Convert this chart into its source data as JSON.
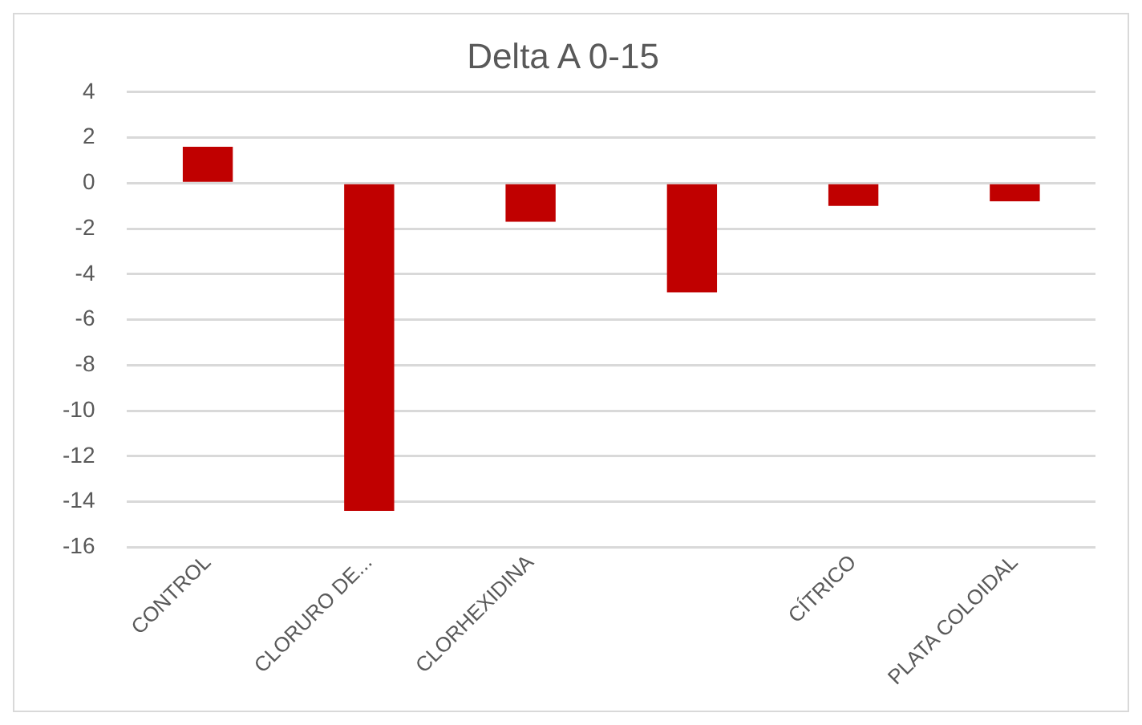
{
  "chart_data": {
    "type": "bar",
    "title": "Delta A 0-15",
    "categories": [
      "CONTROL",
      "CLORURO DE...",
      "CLORHEXIDINA",
      null,
      "CÍTRICO",
      "PLATA COLOIDAL"
    ],
    "values": [
      1.6,
      -14.4,
      -1.7,
      -4.8,
      -1.0,
      -0.8
    ],
    "color": "#c00000",
    "ylim": [
      -16,
      4
    ],
    "yticks": [
      -16,
      -14,
      -12,
      -10,
      -8,
      -6,
      -4,
      -2,
      0,
      2,
      4
    ],
    "grid": "y",
    "legend": false
  }
}
